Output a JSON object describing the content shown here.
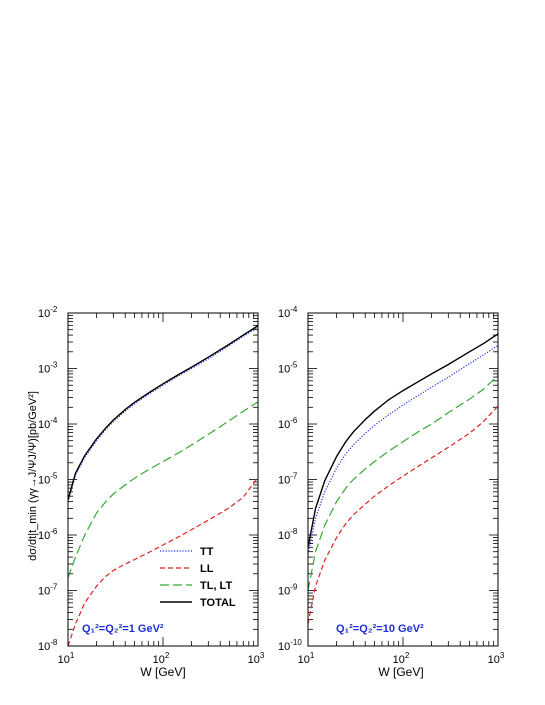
{
  "chart_data": [
    {
      "type": "line",
      "xlabel": "W [GeV]",
      "ylabel": "dσ/dt|t_min (γγ→J/ΨJ/Ψ)[pb/GeV²]",
      "xscale": "log",
      "yscale": "log",
      "xlim": [
        10,
        1000
      ],
      "ylim": [
        1e-08,
        0.01
      ],
      "x_ticklabels": [
        {
          "base": "10",
          "exp": "1"
        },
        {
          "base": "10",
          "exp": "2"
        },
        {
          "base": "10",
          "exp": "3"
        }
      ],
      "y_ticklabels": [
        {
          "base": "10",
          "exp": "-8"
        },
        {
          "base": "10",
          "exp": "-7"
        },
        {
          "base": "10",
          "exp": "-6"
        },
        {
          "base": "10",
          "exp": "-5"
        },
        {
          "base": "10",
          "exp": "-4"
        },
        {
          "base": "10",
          "exp": "-3"
        },
        {
          "base": "10",
          "exp": "-2"
        }
      ],
      "annotation": "Q₁²=Q₂²=1 GeV²",
      "legend_position": "lower-right",
      "series": [
        {
          "name": "TT",
          "color": "#2233dd",
          "style": "dotted",
          "x": [
            10,
            12,
            15,
            20,
            25,
            30,
            40,
            50,
            70,
            100,
            150,
            200,
            300,
            500,
            700,
            1000
          ],
          "y": [
            4e-06,
            1.2e-05,
            2.5e-05,
            5e-05,
            8e-05,
            0.00011,
            0.00017,
            0.00023,
            0.00034,
            0.0005,
            0.00076,
            0.001,
            0.0015,
            0.0026,
            0.0038,
            0.0055
          ]
        },
        {
          "name": "LL",
          "color": "#dd2222",
          "style": "dashed",
          "x": [
            10,
            12,
            15,
            20,
            25,
            30,
            40,
            50,
            70,
            100,
            150,
            200,
            300,
            500,
            700,
            1000
          ],
          "y": [
            1e-08,
            2.5e-08,
            6e-08,
            1.2e-07,
            1.8e-07,
            2.3e-07,
            3e-07,
            3.6e-07,
            4.8e-07,
            6.6e-07,
            9.5e-07,
            1.25e-06,
            1.85e-06,
            3.1e-06,
            4.8e-06,
            1.1e-05
          ]
        },
        {
          "name": "TL, LT",
          "color": "#33aa33",
          "style": "longdash",
          "x": [
            10,
            12,
            15,
            20,
            25,
            30,
            40,
            50,
            70,
            100,
            150,
            200,
            300,
            500,
            700,
            1000
          ],
          "y": [
            1.7e-07,
            4e-07,
            1e-06,
            2.5e-06,
            4e-06,
            5.5e-06,
            8e-06,
            1.05e-05,
            1.5e-05,
            2.1e-05,
            3.1e-05,
            4.2e-05,
            6.5e-05,
            0.000115,
            0.00017,
            0.00025
          ]
        },
        {
          "name": "TOTAL",
          "color": "#000000",
          "style": "solid",
          "x": [
            10,
            12,
            15,
            20,
            25,
            30,
            40,
            50,
            70,
            100,
            150,
            200,
            300,
            500,
            700,
            1000
          ],
          "y": [
            4.3e-06,
            1.3e-05,
            2.7e-05,
            5.4e-05,
            8.5e-05,
            0.000118,
            0.000182,
            0.000245,
            0.00036,
            0.00053,
            0.0008,
            0.00106,
            0.0016,
            0.00275,
            0.004,
            0.0059
          ]
        }
      ]
    },
    {
      "type": "line",
      "xlabel": "W [GeV]",
      "ylabel": "",
      "xscale": "log",
      "yscale": "log",
      "xlim": [
        10,
        1000
      ],
      "ylim": [
        1e-10,
        0.0001
      ],
      "x_ticklabels": [
        {
          "base": "10",
          "exp": "1"
        },
        {
          "base": "10",
          "exp": "2"
        },
        {
          "base": "10",
          "exp": "3"
        }
      ],
      "y_ticklabels": [
        {
          "base": "10",
          "exp": "-10"
        },
        {
          "base": "10",
          "exp": "-9"
        },
        {
          "base": "10",
          "exp": "-8"
        },
        {
          "base": "10",
          "exp": "-7"
        },
        {
          "base": "10",
          "exp": "-6"
        },
        {
          "base": "10",
          "exp": "-5"
        },
        {
          "base": "10",
          "exp": "-4"
        }
      ],
      "annotation": "Q₁²=Q₂²=10 GeV²",
      "series": [
        {
          "name": "TT",
          "color": "#2233dd",
          "style": "dotted",
          "x": [
            10,
            12,
            15,
            20,
            25,
            30,
            40,
            50,
            70,
            100,
            150,
            200,
            300,
            500,
            700,
            1000
          ],
          "y": [
            4.5e-09,
            2e-08,
            6e-08,
            1.6e-07,
            2.9e-07,
            4.2e-07,
            6.8e-07,
            9.4e-07,
            1.45e-06,
            2.2e-06,
            3.4e-06,
            4.6e-06,
            7e-06,
            1.22e-05,
            1.75e-05,
            2.6e-05
          ]
        },
        {
          "name": "LL",
          "color": "#dd2222",
          "style": "dashed",
          "x": [
            10,
            12,
            15,
            20,
            25,
            30,
            40,
            50,
            70,
            100,
            150,
            200,
            300,
            500,
            700,
            1000
          ],
          "y": [
            2.5e-10,
            1.2e-09,
            3.5e-09,
            9e-09,
            1.6e-08,
            2.3e-08,
            3.6e-08,
            5e-08,
            7.6e-08,
            1.15e-07,
            1.8e-07,
            2.45e-07,
            3.8e-07,
            6.8e-07,
            1.1e-06,
            2.1e-06
          ]
        },
        {
          "name": "TL, LT",
          "color": "#33aa33",
          "style": "longdash",
          "x": [
            10,
            12,
            15,
            20,
            25,
            30,
            40,
            50,
            70,
            100,
            150,
            200,
            300,
            500,
            700,
            1000
          ],
          "y": [
            1e-09,
            5e-09,
            1.5e-08,
            4e-08,
            7e-08,
            1e-07,
            1.55e-07,
            2.1e-07,
            3.2e-07,
            4.8e-07,
            7.5e-07,
            1e-06,
            1.6e-06,
            2.8e-06,
            4.2e-06,
            7.5e-06
          ]
        },
        {
          "name": "TOTAL",
          "color": "#000000",
          "style": "solid",
          "x": [
            10,
            12,
            15,
            20,
            25,
            30,
            40,
            50,
            70,
            100,
            150,
            200,
            300,
            500,
            700,
            1000
          ],
          "y": [
            6e-09,
            3e-08,
            9.5e-08,
            2.6e-07,
            4.8e-07,
            7.2e-07,
            1.2e-06,
            1.7e-06,
            2.7e-06,
            4e-06,
            6e-06,
            8e-06,
            1.18e-05,
            2e-05,
            2.8e-05,
            4.2e-05
          ]
        }
      ]
    }
  ]
}
